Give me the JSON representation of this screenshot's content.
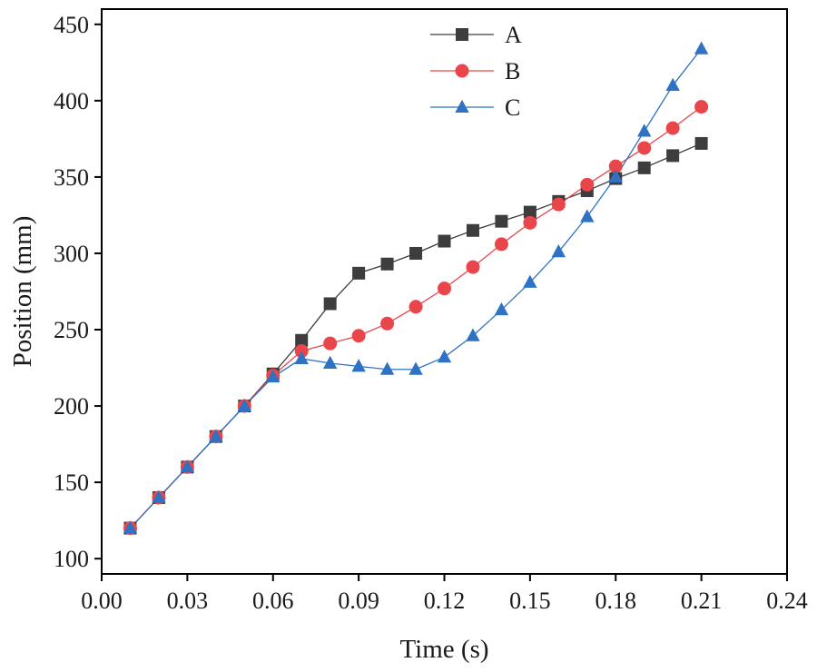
{
  "chart_data": {
    "type": "line",
    "xlabel": "Time (s)",
    "ylabel": "Position (mm)",
    "xlim": [
      0.0,
      0.24
    ],
    "ylim": [
      90,
      460
    ],
    "xticks": [
      "0.00",
      "0.03",
      "0.06",
      "0.09",
      "0.12",
      "0.15",
      "0.18",
      "0.21",
      "0.24"
    ],
    "yticks": [
      "100",
      "150",
      "200",
      "250",
      "300",
      "350",
      "400",
      "450"
    ],
    "x": [
      0.01,
      0.02,
      0.03,
      0.04,
      0.05,
      0.06,
      0.07,
      0.08,
      0.09,
      0.1,
      0.11,
      0.12,
      0.13,
      0.14,
      0.15,
      0.16,
      0.17,
      0.18,
      0.19,
      0.2,
      0.21
    ],
    "series": [
      {
        "name": "A",
        "marker": "square",
        "color": "#3d3d3d",
        "values": [
          120,
          140,
          160,
          180,
          200,
          221,
          243,
          267,
          287,
          293,
          300,
          308,
          315,
          321,
          327,
          334,
          341,
          349,
          356,
          364,
          372
        ]
      },
      {
        "name": "B",
        "marker": "circle",
        "color": "#e8464a",
        "values": [
          120,
          140,
          160,
          180,
          200,
          220,
          236,
          241,
          246,
          254,
          265,
          277,
          291,
          306,
          320,
          332,
          345,
          357,
          369,
          382,
          396
        ]
      },
      {
        "name": "C",
        "marker": "triangle",
        "color": "#2f72c4",
        "values": [
          120,
          140,
          160,
          180,
          200,
          219,
          231,
          228,
          226,
          224,
          224,
          232,
          246,
          263,
          281,
          301,
          324,
          350,
          380,
          410,
          434
        ]
      }
    ],
    "legend": "top-center"
  }
}
